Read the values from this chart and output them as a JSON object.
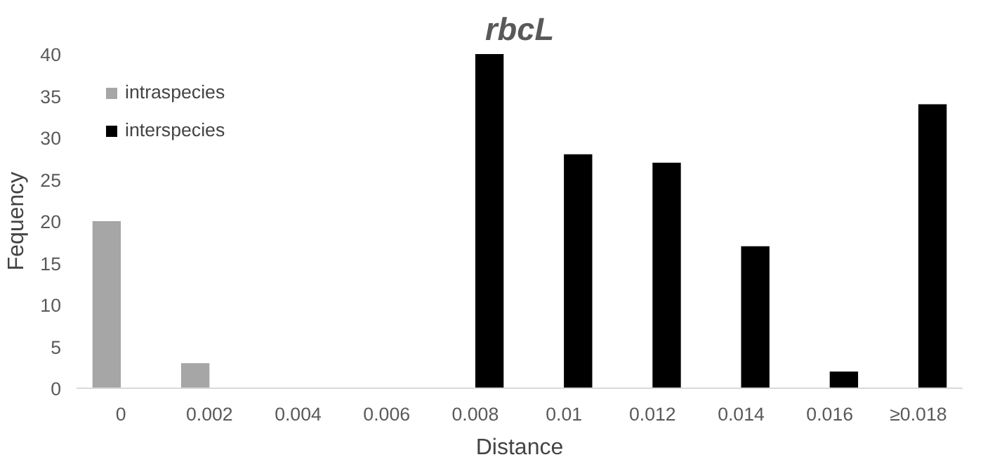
{
  "chart_data": {
    "type": "bar",
    "title": "rbcL",
    "xlabel": "Distance",
    "ylabel": "Fequency",
    "categories": [
      "0",
      "0.002",
      "0.004",
      "0.006",
      "0.008",
      "0.01",
      "0.012",
      "0.014",
      "0.016",
      "≥0.018"
    ],
    "series": [
      {
        "name": "intraspecies",
        "color": "#a6a6a6",
        "values": [
          20,
          3,
          0,
          0,
          0,
          0,
          0,
          0,
          0,
          0
        ]
      },
      {
        "name": "interspecies",
        "color": "#000000",
        "values": [
          0,
          0,
          0,
          0,
          40,
          28,
          27,
          17,
          2,
          34
        ]
      }
    ],
    "ylim": [
      0,
      40
    ],
    "yticks": [
      0,
      5,
      10,
      15,
      20,
      25,
      30,
      35,
      40
    ],
    "grid": false,
    "legend": "top left"
  }
}
